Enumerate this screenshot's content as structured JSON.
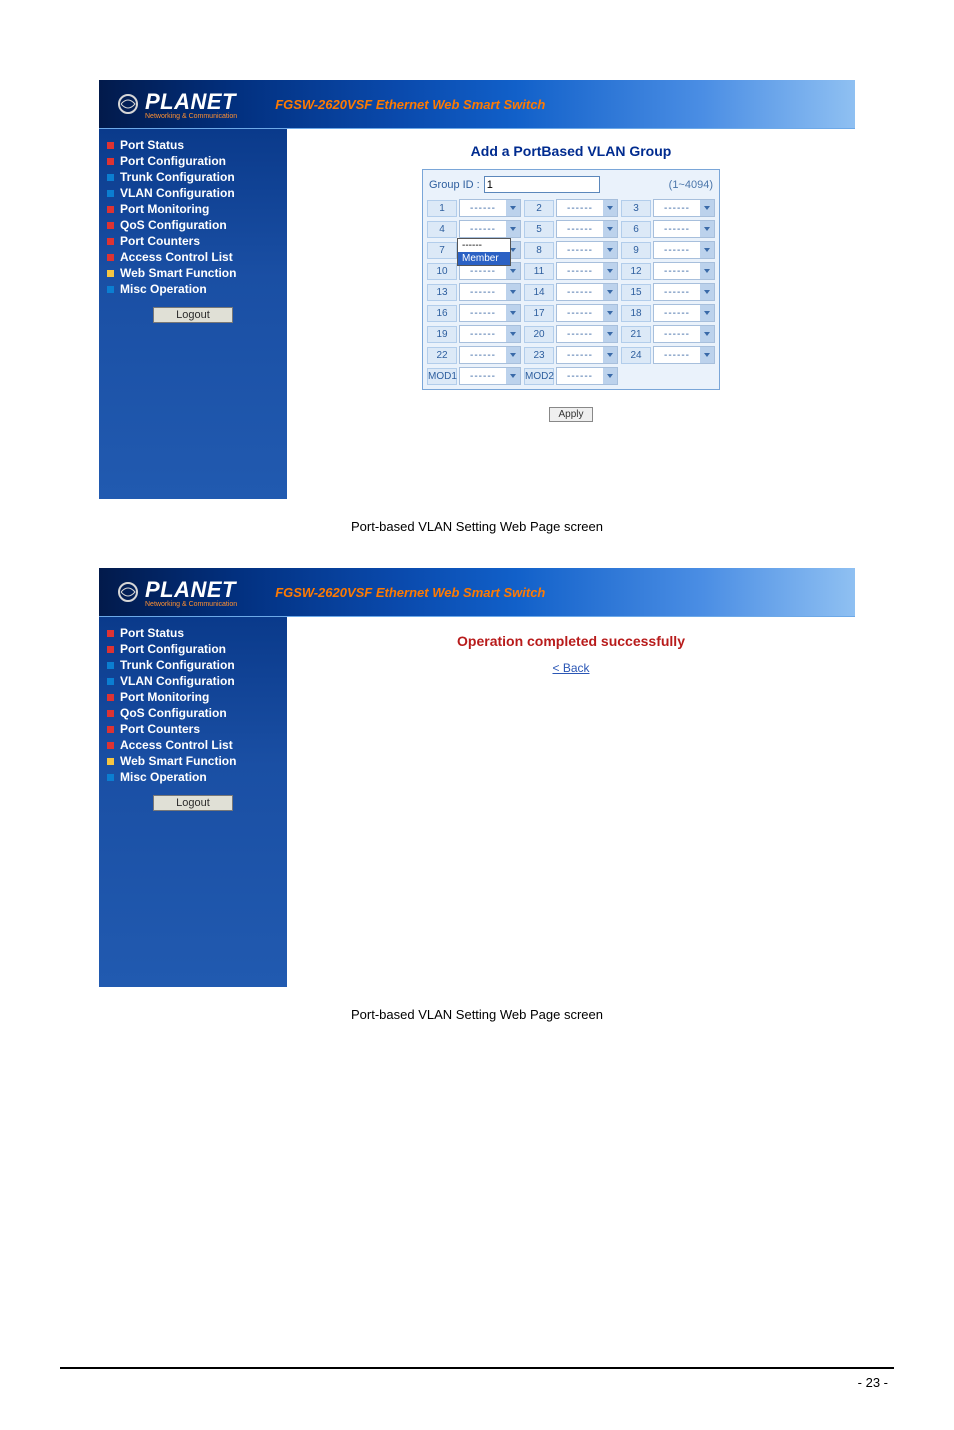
{
  "product_line": "FGSW-2620VSF Ethernet Web Smart Switch",
  "logo_text": "PLANET",
  "logo_sub": "Networking & Communication",
  "sidebar": {
    "items": [
      {
        "label": "Port Status",
        "color": "#d33"
      },
      {
        "label": "Port Configuration",
        "color": "#d33"
      },
      {
        "label": "Trunk Configuration",
        "color": "#0b7ed1"
      },
      {
        "label": "VLAN Configuration",
        "color": "#0b7ed1"
      },
      {
        "label": "Port Monitoring",
        "color": "#d33"
      },
      {
        "label": "QoS Configuration",
        "color": "#d33"
      },
      {
        "label": "Port Counters",
        "color": "#d33"
      },
      {
        "label": "Access Control List",
        "color": "#d33"
      },
      {
        "label": "Web Smart Function",
        "color": "#f5c542"
      },
      {
        "label": "Misc Operation",
        "color": "#0b7ed1"
      }
    ],
    "logout": "Logout"
  },
  "shot1": {
    "title": "Add a PortBased VLAN Group",
    "group_id_label": "Group ID :",
    "group_id_value": "1",
    "group_id_range": "(1~4094)",
    "port_placeholder": "------",
    "ports": [
      "1",
      "2",
      "3",
      "4",
      "5",
      "6",
      "7",
      "8",
      "9",
      "10",
      "11",
      "12",
      "13",
      "14",
      "15",
      "16",
      "17",
      "18",
      "19",
      "20",
      "21",
      "22",
      "23",
      "24",
      "MOD1",
      "MOD2"
    ],
    "dropdown_on_port_index": 3,
    "dropdown_options": [
      "------",
      "Member"
    ],
    "dropdown_selected_index": 1,
    "apply_label": "Apply",
    "caption": "Port-based VLAN Setting Web Page screen"
  },
  "shot2": {
    "title": "Operation completed successfully",
    "back_label": "< Back",
    "caption": "Port-based VLAN Setting Web Page screen"
  },
  "logo_ring_color": "#d6d6d6",
  "page_number": "- 23 -"
}
